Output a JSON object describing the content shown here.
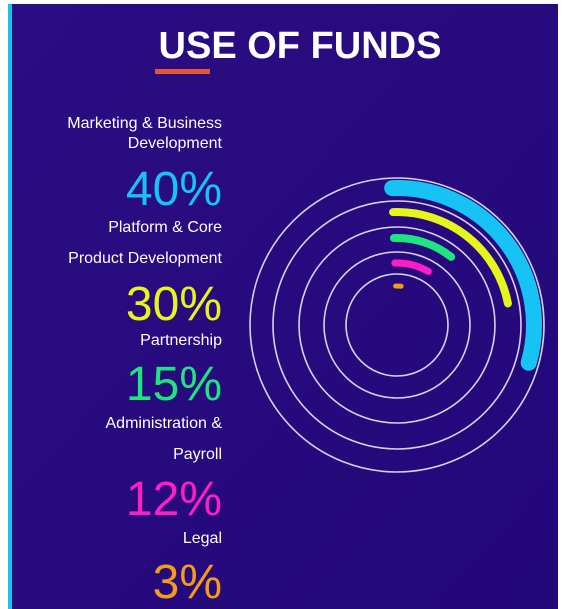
{
  "chart_data": {
    "type": "radial-bar",
    "title": "USE OF FUNDS",
    "categories": [
      [
        "Marketing & Business",
        "Development"
      ],
      [
        "Platform & Core",
        "Product Development"
      ],
      [
        "Partnership"
      ],
      [
        "Administration &",
        "Payroll"
      ],
      [
        "Legal"
      ]
    ],
    "values": [
      40,
      30,
      15,
      12,
      3
    ],
    "value_labels": [
      "40%",
      "30%",
      "15%",
      "12%",
      "3%"
    ],
    "colors": [
      "#17c3f5",
      "#e6f51a",
      "#1ee67e",
      "#ff1ec4",
      "#f59a1a"
    ]
  }
}
